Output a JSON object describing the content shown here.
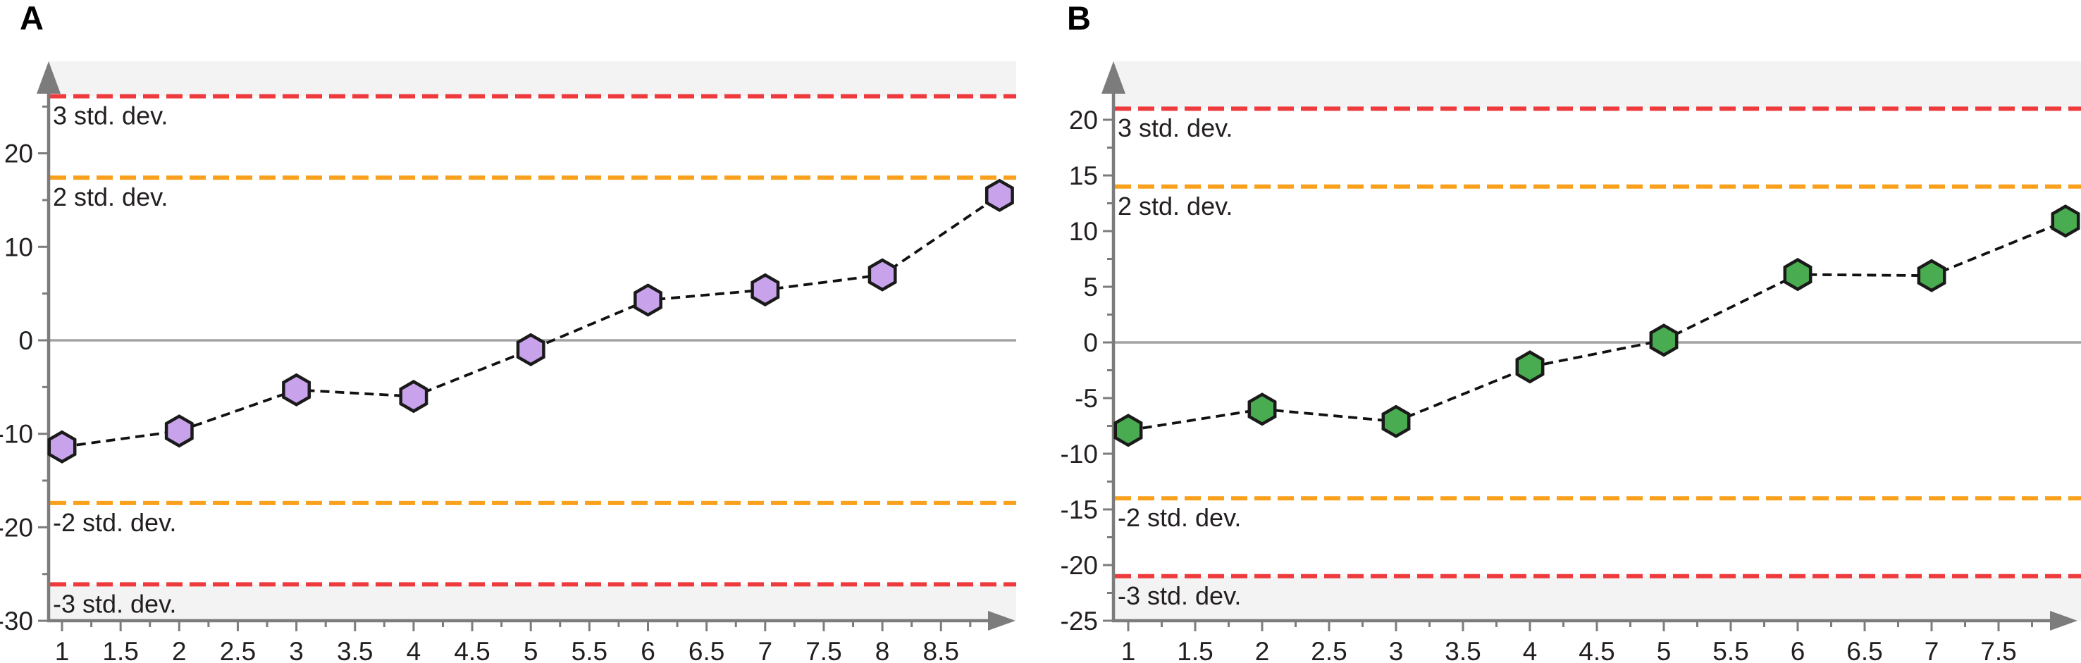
{
  "page": {
    "background": "#ffffff"
  },
  "panels": [
    {
      "letter": "A"
    },
    {
      "letter": "B"
    }
  ],
  "colors": {
    "axis": "#7c7c7c",
    "zero_line": "#a3a3a3",
    "out_of_control_band": "#f3f3f3",
    "tick_text": "#231f20",
    "three_sigma_line": "#ee3a3c",
    "two_sigma_line": "#f9a11d",
    "data_line": "#111111"
  },
  "chart_data": [
    {
      "type": "line",
      "panel": "A",
      "title": "",
      "xlabel": "",
      "ylabel": "",
      "grid": false,
      "legend": null,
      "x_range": [
        0.89,
        9.15
      ],
      "ylim": [
        -30,
        29.8
      ],
      "series": [
        {
          "name": "cusum-series-a",
          "marker": "hexagon",
          "marker_fill": "#c8a3ec",
          "marker_stroke": "#1a1a1a",
          "line_style": "dashed",
          "x": [
            1,
            2,
            3,
            4,
            5,
            6,
            7,
            8,
            9
          ],
          "y": [
            -11.4,
            -9.7,
            -5.3,
            -6.0,
            -1.0,
            4.3,
            5.4,
            7.0,
            15.5
          ]
        }
      ],
      "control_lines": [
        {
          "label": "3 std. dev.",
          "value": 26.1,
          "color": "#ee3a3c",
          "style": "dashed"
        },
        {
          "label": "2 std. dev.",
          "value": 17.4,
          "color": "#f9a11d",
          "style": "dashed"
        },
        {
          "label": "-2 std. dev.",
          "value": -17.4,
          "color": "#f9a11d",
          "style": "dashed"
        },
        {
          "label": "-3 std. dev.",
          "value": -26.1,
          "color": "#ee3a3c",
          "style": "dashed"
        }
      ],
      "zero_line": 0,
      "x_tick_labels": [
        "1",
        "1.5",
        "2",
        "2.5",
        "3",
        "3.5",
        "4",
        "4.5",
        "5",
        "5.5",
        "6",
        "6.5",
        "7",
        "7.5",
        "8",
        "8.5"
      ],
      "y_tick_labels": [
        "-30",
        "-20",
        "-10",
        "0",
        "10",
        "20"
      ]
    },
    {
      "type": "line",
      "panel": "B",
      "title": "",
      "xlabel": "",
      "ylabel": "",
      "grid": false,
      "legend": null,
      "x_range": [
        0.88,
        8.12
      ],
      "ylim": [
        -25,
        25.2
      ],
      "series": [
        {
          "name": "cusum-series-b",
          "marker": "hexagon",
          "marker_fill": "#4aac50",
          "marker_stroke": "#1a1a1a",
          "line_style": "dashed",
          "x": [
            1,
            2,
            3,
            4,
            5,
            6,
            7,
            8
          ],
          "y": [
            -7.9,
            -6.0,
            -7.1,
            -2.2,
            0.2,
            6.1,
            6.0,
            10.9
          ]
        }
      ],
      "control_lines": [
        {
          "label": "3 std. dev.",
          "value": 21,
          "color": "#ee3a3c",
          "style": "dashed"
        },
        {
          "label": "2 std. dev.",
          "value": 14,
          "color": "#f9a11d",
          "style": "dashed"
        },
        {
          "label": "-2 std. dev.",
          "value": -14,
          "color": "#f9a11d",
          "style": "dashed"
        },
        {
          "label": "-3 std. dev.",
          "value": -21,
          "color": "#ee3a3c",
          "style": "dashed"
        }
      ],
      "zero_line": 0,
      "x_tick_labels": [
        "1",
        "1.5",
        "2",
        "2.5",
        "3",
        "3.5",
        "4",
        "4.5",
        "5",
        "5.5",
        "6",
        "6.5",
        "7",
        "7.5"
      ],
      "y_tick_labels": [
        "-25",
        "-20",
        "-15",
        "-10",
        "-5",
        "0",
        "5",
        "10",
        "15",
        "20"
      ]
    }
  ]
}
